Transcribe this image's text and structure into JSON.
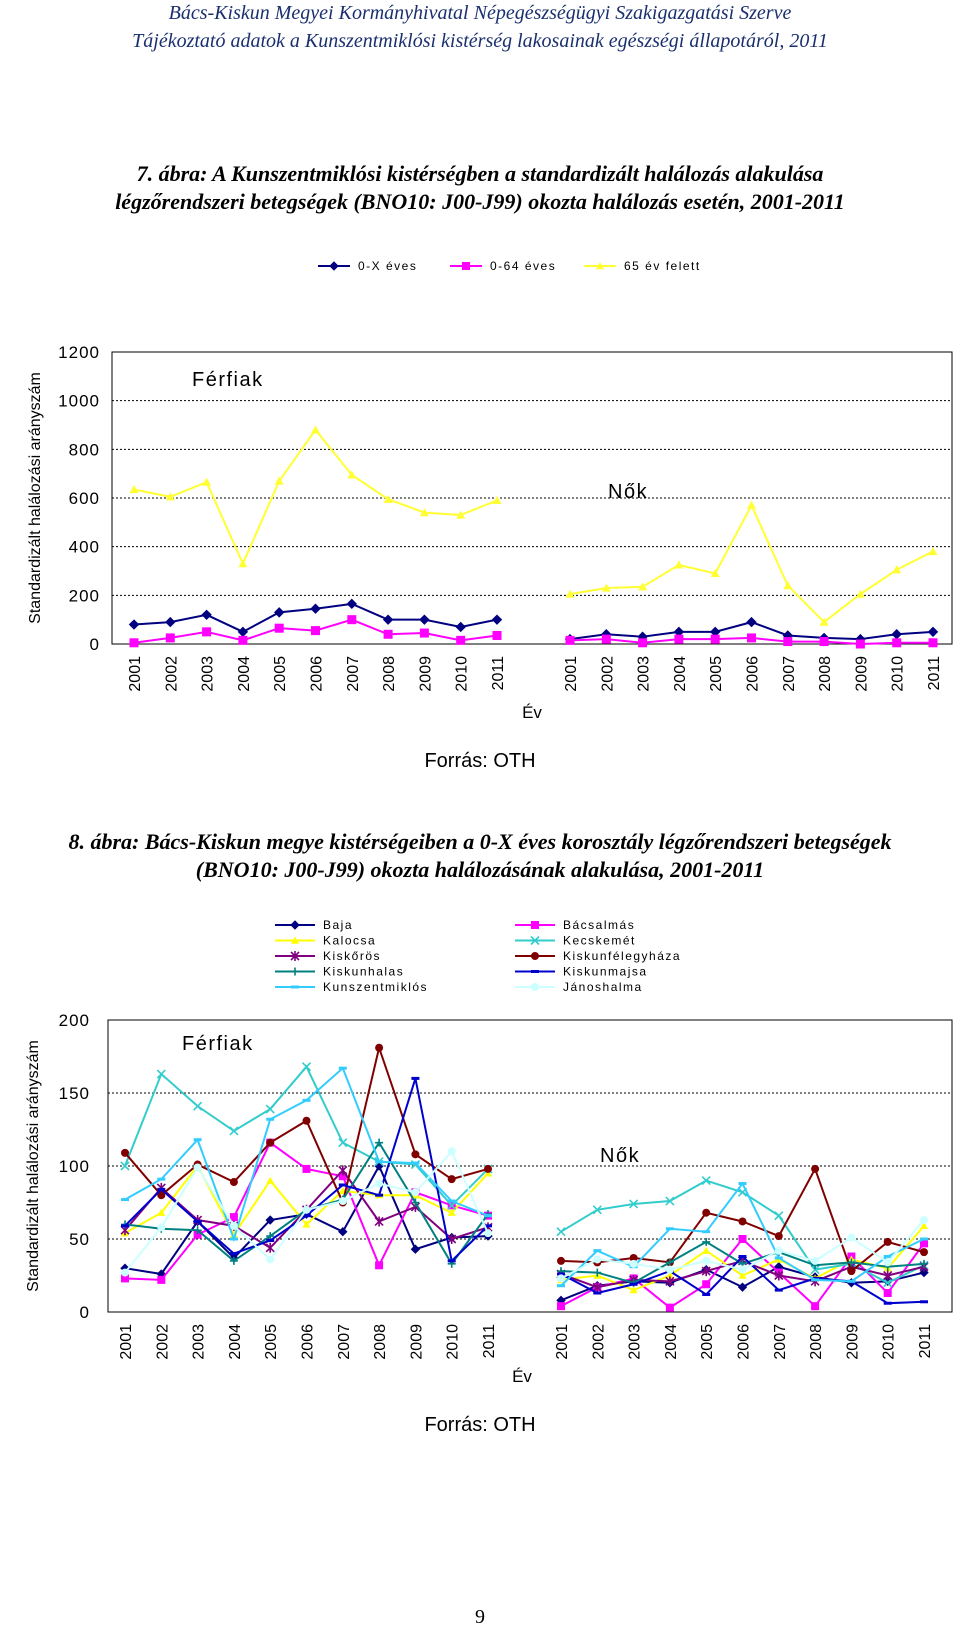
{
  "header": {
    "line1": "Bács-Kiskun Megyei Kormányhivatal Népegészségügyi Szakigazgatási Szerve",
    "line2": "Tájékoztató adatok a Kunszentmiklósi kistérség lakosainak egészségi állapotáról, 2011"
  },
  "figure7": {
    "caption_line1": "7. ábra: A Kunszentmiklósi kistérségben a standardizált halálozás alakulása",
    "caption_line2": "légzőrendszeri betegségek (BNO10: J00-J99) okozta halálozás esetén, 2001-2011",
    "source": "Forrás: OTH"
  },
  "figure8": {
    "caption_line1": "8. ábra: Bács-Kiskun megye kistérségeiben a 0-X éves korosztály légzőrendszeri betegségek",
    "caption_line2": "(BNO10: J00-J99) okozta halálozásának alakulása, 2001-2011",
    "source": "Forrás: OTH"
  },
  "page_number": "9",
  "chart_data": [
    {
      "type": "line",
      "ylabel": "Standardizált halálozási arányszám",
      "xlabel": "Év",
      "ylim": [
        0,
        1200
      ],
      "yticks": [
        0,
        200,
        400,
        600,
        800,
        1000,
        1200
      ],
      "legend_position": "top",
      "panels": [
        "Férfiak",
        "Nők"
      ],
      "categories": [
        "2001",
        "2002",
        "2003",
        "2004",
        "2005",
        "2006",
        "2007",
        "2008",
        "2009",
        "2010",
        "2011"
      ],
      "series": [
        {
          "name": "0-X éves",
          "color": "#000080",
          "marker": "diamond",
          "Férfiak": [
            80,
            90,
            120,
            50,
            130,
            145,
            165,
            100,
            100,
            70,
            100
          ],
          "Nők": [
            20,
            40,
            30,
            50,
            50,
            90,
            35,
            25,
            20,
            40,
            50
          ]
        },
        {
          "name": "0-64 éves",
          "color": "#ff00ff",
          "marker": "square",
          "Férfiak": [
            5,
            25,
            50,
            15,
            65,
            55,
            100,
            40,
            45,
            15,
            35
          ],
          "Nők": [
            15,
            20,
            5,
            20,
            20,
            25,
            10,
            10,
            0,
            5,
            5
          ]
        },
        {
          "name": "65 év felett",
          "color": "#ffff33",
          "marker": "triangle",
          "Férfiak": [
            635,
            605,
            665,
            330,
            670,
            880,
            695,
            595,
            540,
            530,
            590
          ],
          "Nők": [
            205,
            230,
            235,
            325,
            290,
            570,
            240,
            90,
            205,
            305,
            380
          ]
        }
      ]
    },
    {
      "type": "line",
      "ylabel": "Standardizált halálozási arányszám",
      "xlabel": "Év",
      "ylim": [
        0,
        200
      ],
      "yticks": [
        0,
        50,
        100,
        150,
        200
      ],
      "legend_position": "top",
      "panels": [
        "Férfiak",
        "Nők"
      ],
      "categories": [
        "2001",
        "2002",
        "2003",
        "2004",
        "2005",
        "2006",
        "2007",
        "2008",
        "2009",
        "2010",
        "2011"
      ],
      "series": [
        {
          "name": "Baja",
          "color": "#000080",
          "marker": "diamond",
          "Férfiak": [
            30,
            26,
            62,
            37,
            63,
            67,
            55,
            100,
            43,
            51,
            52
          ],
          "Nők": [
            8,
            18,
            21,
            20,
            29,
            17,
            31,
            24,
            20,
            21,
            27
          ]
        },
        {
          "name": "Bácsalmás",
          "color": "#ff00ff",
          "marker": "square",
          "Férfiak": [
            23,
            22,
            53,
            65,
            116,
            98,
            93,
            32,
            82,
            73,
            66
          ],
          "Nők": [
            4,
            17,
            23,
            3,
            19,
            50,
            27,
            4,
            38,
            13,
            47
          ]
        },
        {
          "name": "Kalocsa",
          "color": "#ffff00",
          "marker": "triangle",
          "Férfiak": [
            54,
            68,
            100,
            53,
            90,
            60,
            83,
            80,
            80,
            68,
            95
          ],
          "Nők": [
            22,
            25,
            15,
            25,
            42,
            25,
            36,
            23,
            36,
            30,
            59
          ]
        },
        {
          "name": "Kecskemét",
          "color": "#33cccc",
          "marker": "x",
          "Férfiak": [
            100,
            163,
            141,
            124,
            139,
            168,
            116,
            103,
            101,
            73,
            98
          ],
          "Nők": [
            55,
            70,
            74,
            76,
            90,
            82,
            66,
            29,
            33,
            20,
            32
          ]
        },
        {
          "name": "Kiskőrös",
          "color": "#800080",
          "marker": "star",
          "Férfiak": [
            56,
            85,
            63,
            59,
            44,
            70,
            97,
            62,
            72,
            50,
            58
          ],
          "Nők": [
            26,
            17,
            22,
            21,
            28,
            35,
            25,
            21,
            31,
            25,
            31
          ]
        },
        {
          "name": "Kiskunfélegyháza",
          "color": "#800000",
          "marker": "circle",
          "Férfiak": [
            109,
            80,
            101,
            89,
            116,
            131,
            75,
            181,
            108,
            91,
            98
          ],
          "Nők": [
            35,
            34,
            37,
            34,
            68,
            62,
            52,
            98,
            28,
            48,
            41
          ]
        },
        {
          "name": "Kiskunhalas",
          "color": "#008080",
          "marker": "plus",
          "Férfiak": [
            60,
            57,
            56,
            35,
            52,
            70,
            77,
            116,
            75,
            33,
            67
          ],
          "Nők": [
            28,
            27,
            20,
            34,
            48,
            33,
            41,
            32,
            34,
            31,
            33
          ]
        },
        {
          "name": "Kiskunmajsa",
          "color": "#0000cc",
          "marker": "dash",
          "Férfiak": [
            59,
            84,
            62,
            40,
            49,
            66,
            87,
            80,
            160,
            35,
            59
          ],
          "Nők": [
            26,
            13,
            19,
            28,
            12,
            38,
            15,
            23,
            21,
            6,
            7
          ]
        },
        {
          "name": "Kunszentmiklós",
          "color": "#33ccff",
          "marker": "dash",
          "Férfiak": [
            77,
            91,
            118,
            50,
            132,
            145,
            167,
            103,
            102,
            76,
            66
          ],
          "Nők": [
            18,
            42,
            31,
            57,
            55,
            88,
            37,
            22,
            21,
            38,
            50
          ]
        },
        {
          "name": "Jánoshalma",
          "color": "#ccffff",
          "marker": "circle",
          "Férfiak": [
            27,
            58,
            99,
            59,
            36,
            70,
            76,
            88,
            82,
            110,
            54
          ],
          "Nők": [
            23,
            36,
            33,
            29,
            35,
            29,
            42,
            35,
            51,
            34,
            63
          ]
        }
      ]
    }
  ]
}
